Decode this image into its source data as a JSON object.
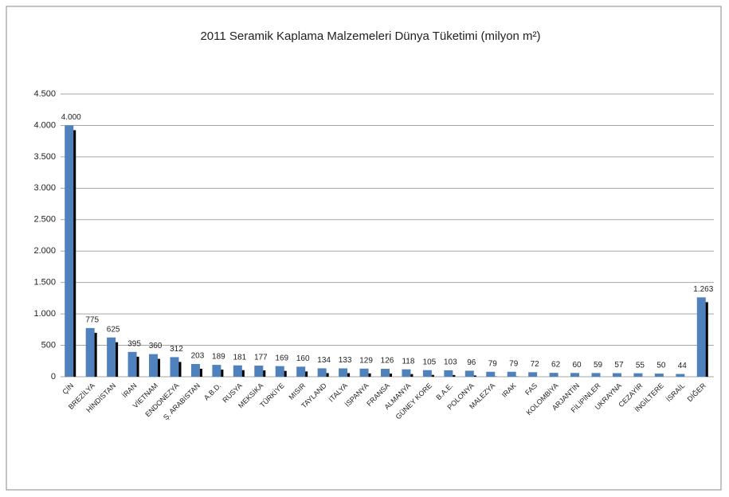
{
  "chart_data": {
    "type": "bar",
    "title": "2011 Seramik Kaplama Malzemeleri Dünya Tüketimi (milyon m²)",
    "categories": [
      "ÇİN",
      "BREZİLYA",
      "HİNDİSTAN",
      "İRAN",
      "VİETNAM",
      "ENDONEZYA",
      "Ş. ARABİSTAN",
      "A.B.D.",
      "RUSYA",
      "MEKSİKA",
      "TÜRKİYE",
      "MISIR",
      "TAYLAND",
      "İTALYA",
      "İSPANYA",
      "FRANSA",
      "ALMANYA",
      "GÜNEY KORE",
      "B.A.E.",
      "POLONYA",
      "MALEZYA",
      "IRAK",
      "FAS",
      "KOLOMBİYA",
      "ARJANTİN",
      "FİLİPİNLER",
      "UKRAYNA",
      "CEZAYİR",
      "İNGİLTERE",
      "İSRAİL",
      "DİĞER"
    ],
    "values": [
      4000,
      775,
      625,
      395,
      360,
      312,
      203,
      189,
      181,
      177,
      169,
      160,
      134,
      133,
      129,
      126,
      118,
      105,
      103,
      96,
      79,
      79,
      72,
      62,
      60,
      59,
      57,
      55,
      50,
      44,
      1263
    ],
    "value_labels": [
      "4.000",
      "775",
      "625",
      "395",
      "360",
      "312",
      "203",
      "189",
      "181",
      "177",
      "169",
      "160",
      "134",
      "133",
      "129",
      "126",
      "118",
      "105",
      "103",
      "96",
      "79",
      "79",
      "72",
      "62",
      "60",
      "59",
      "57",
      "55",
      "50",
      "44",
      "1.263"
    ],
    "color": "#4f81bd",
    "shadow_color": "#000000",
    "ylim": [
      0,
      4500
    ],
    "yticks": [
      0,
      500,
      {
        "value": 1000,
        "label": "1.000"
      },
      {
        "value": 1500,
        "label": "1.500"
      },
      {
        "value": 2000,
        "label": "2.000"
      },
      {
        "value": 2500,
        "label": "2.500"
      },
      {
        "value": 3000,
        "label": "3.000"
      },
      {
        "value": 3500,
        "label": "3.500"
      },
      {
        "value": 4000,
        "label": "4.000"
      },
      {
        "value": 4500,
        "label": "4.500"
      }
    ],
    "grid": true
  }
}
